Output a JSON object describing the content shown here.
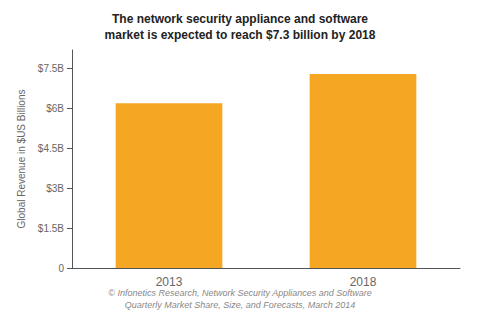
{
  "chart_data": {
    "type": "bar",
    "title": "The network security appliance and software\nmarket is expected to reach $7.3 billion by 2018",
    "annotations": [
      "© Infonetics Research, Network Security Appliances and Software\nQuarterly Market Share, Size, and Forecasts, March 2014"
    ],
    "ylabel": "Global Revenue in $US Billions",
    "categories": [
      "2013",
      "2018"
    ],
    "values": [
      6.2,
      7.3
    ],
    "color": "#F5A623",
    "ylim": [
      0,
      8.2
    ],
    "yticks": [
      0,
      {
        "value": 1.5,
        "label": "$1.5B"
      },
      {
        "value": 3.0,
        "label": "$3B"
      },
      {
        "value": 4.5,
        "label": "$4.5B"
      },
      {
        "value": 6.0,
        "label": "$6B"
      },
      {
        "value": 7.5,
        "label": "$7.5B"
      }
    ],
    "grid": false
  }
}
